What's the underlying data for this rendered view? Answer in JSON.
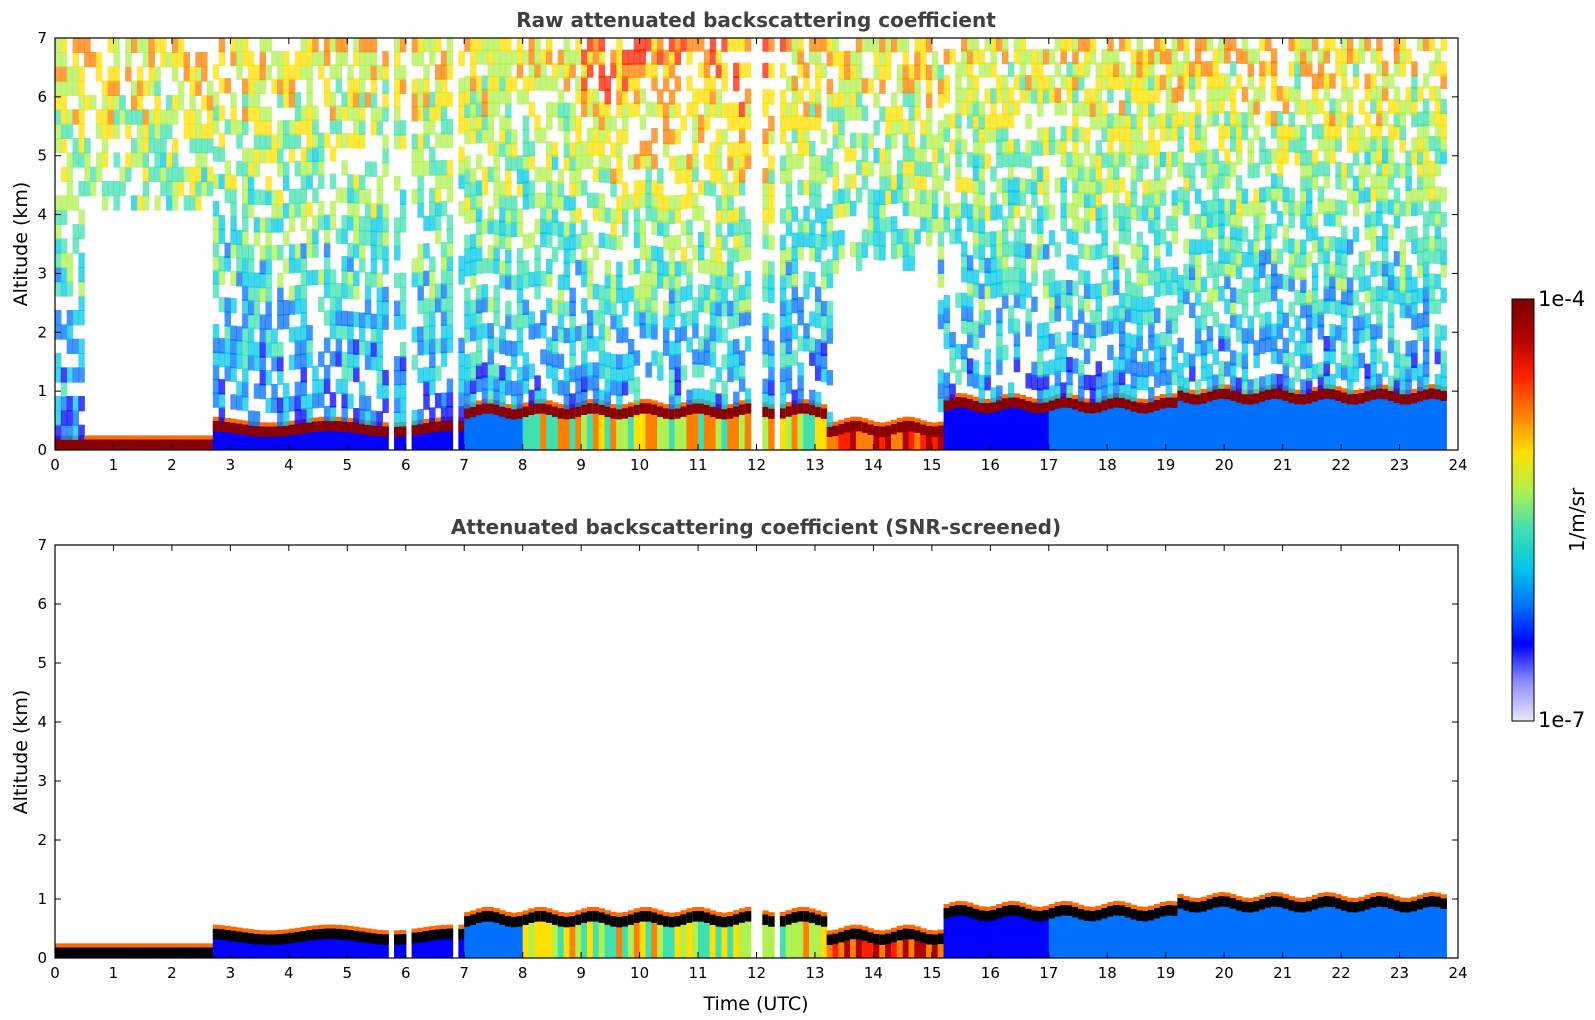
{
  "chart_data": [
    {
      "type": "heatmap",
      "title": "Raw attenuated backscattering coefficient",
      "xlabel": "",
      "ylabel": "Altitude (km)",
      "xlim": [
        0,
        24
      ],
      "ylim": [
        0,
        7
      ],
      "xticks": [
        "0",
        "1",
        "2",
        "3",
        "4",
        "5",
        "6",
        "7",
        "8",
        "9",
        "10",
        "11",
        "12",
        "13",
        "14",
        "15",
        "16",
        "17",
        "18",
        "19",
        "20",
        "21",
        "22",
        "23",
        "24"
      ],
      "yticks": [
        "0",
        "1",
        "2",
        "3",
        "4",
        "5",
        "6",
        "7"
      ],
      "data_gaps_utc": [
        [
          5.72,
          5.85
        ],
        [
          6.05,
          6.12
        ],
        [
          6.8,
          6.87
        ],
        [
          11.95,
          12.08
        ],
        [
          12.35,
          12.45
        ]
      ],
      "layers": [
        {
          "name": "surface layer",
          "from": 0,
          "to": 2.7,
          "bottom_km": 0.05,
          "top_km": 0.18
        },
        {
          "name": "aerosol/cloud layer",
          "from": 7.0,
          "to": 13.2,
          "top_km": 0.75
        },
        {
          "name": "aerosol/cloud layer",
          "from": 13.2,
          "to": 15.2,
          "top_km": 0.45
        },
        {
          "name": "aerosol/cloud layer",
          "from": 15.2,
          "to": 19.2,
          "top_km": 0.85
        },
        {
          "name": "aerosol/cloud layer",
          "from": 19.2,
          "to": 23.8,
          "top_km": 1.0
        }
      ]
    },
    {
      "type": "heatmap",
      "title": "Attenuated backscattering coefficient (SNR-screened)",
      "xlabel": "Time (UTC)",
      "ylabel": "Altitude (km)",
      "xlim": [
        0,
        24
      ],
      "ylim": [
        0,
        7
      ],
      "xticks": [
        "0",
        "1",
        "2",
        "3",
        "4",
        "5",
        "6",
        "7",
        "8",
        "9",
        "10",
        "11",
        "12",
        "13",
        "14",
        "15",
        "16",
        "17",
        "18",
        "19",
        "20",
        "21",
        "22",
        "23",
        "24"
      ],
      "yticks": [
        "0",
        "1",
        "2",
        "3",
        "4",
        "5",
        "6",
        "7"
      ]
    }
  ],
  "colorbar": {
    "label": "1/m/sr",
    "max_label": "1e-4",
    "min_label": "1e-7",
    "scale": "log",
    "colors": [
      "#e8e8f8",
      "#9090ff",
      "#0000ff",
      "#0070ff",
      "#00c8e8",
      "#40e0b0",
      "#b0f050",
      "#ffe000",
      "#ff8000",
      "#ff2000",
      "#b00000",
      "#800000"
    ]
  }
}
